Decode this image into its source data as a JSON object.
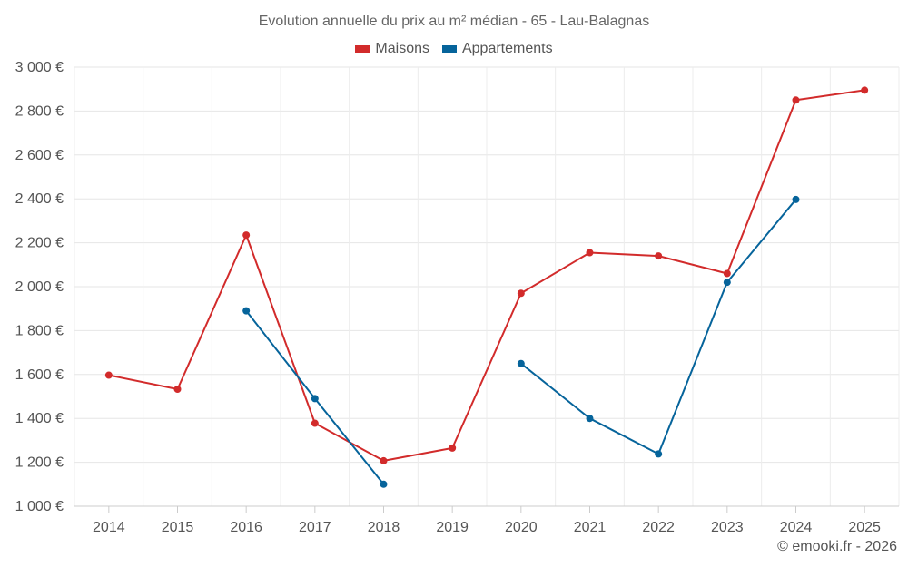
{
  "chart_data": {
    "type": "line",
    "title": "Evolution annuelle du prix au m² médian - 65 - Lau-Balagnas",
    "categories": [
      "2014",
      "2015",
      "2016",
      "2017",
      "2018",
      "2019",
      "2020",
      "2021",
      "2022",
      "2023",
      "2024",
      "2025"
    ],
    "series": [
      {
        "name": "Maisons",
        "color": "#d22b2b",
        "values": [
          1597,
          1533,
          2235,
          1378,
          1207,
          1265,
          1970,
          2155,
          2140,
          2060,
          2850,
          2895
        ]
      },
      {
        "name": "Appartements",
        "color": "#06649b",
        "values": [
          null,
          null,
          1890,
          1490,
          1100,
          null,
          1650,
          1400,
          1238,
          2020,
          2397,
          null
        ]
      }
    ],
    "yticks": [
      "1 000 €",
      "1 200 €",
      "1 400 €",
      "1 600 €",
      "1 800 €",
      "2 000 €",
      "2 200 €",
      "2 400 €",
      "2 600 €",
      "2 800 €",
      "3 000 €"
    ],
    "ylim": [
      1000,
      3000
    ],
    "xlabel": "",
    "ylabel": "",
    "grid": true,
    "legend": "top-center"
  },
  "credit": "© emooki.fr - 2026"
}
